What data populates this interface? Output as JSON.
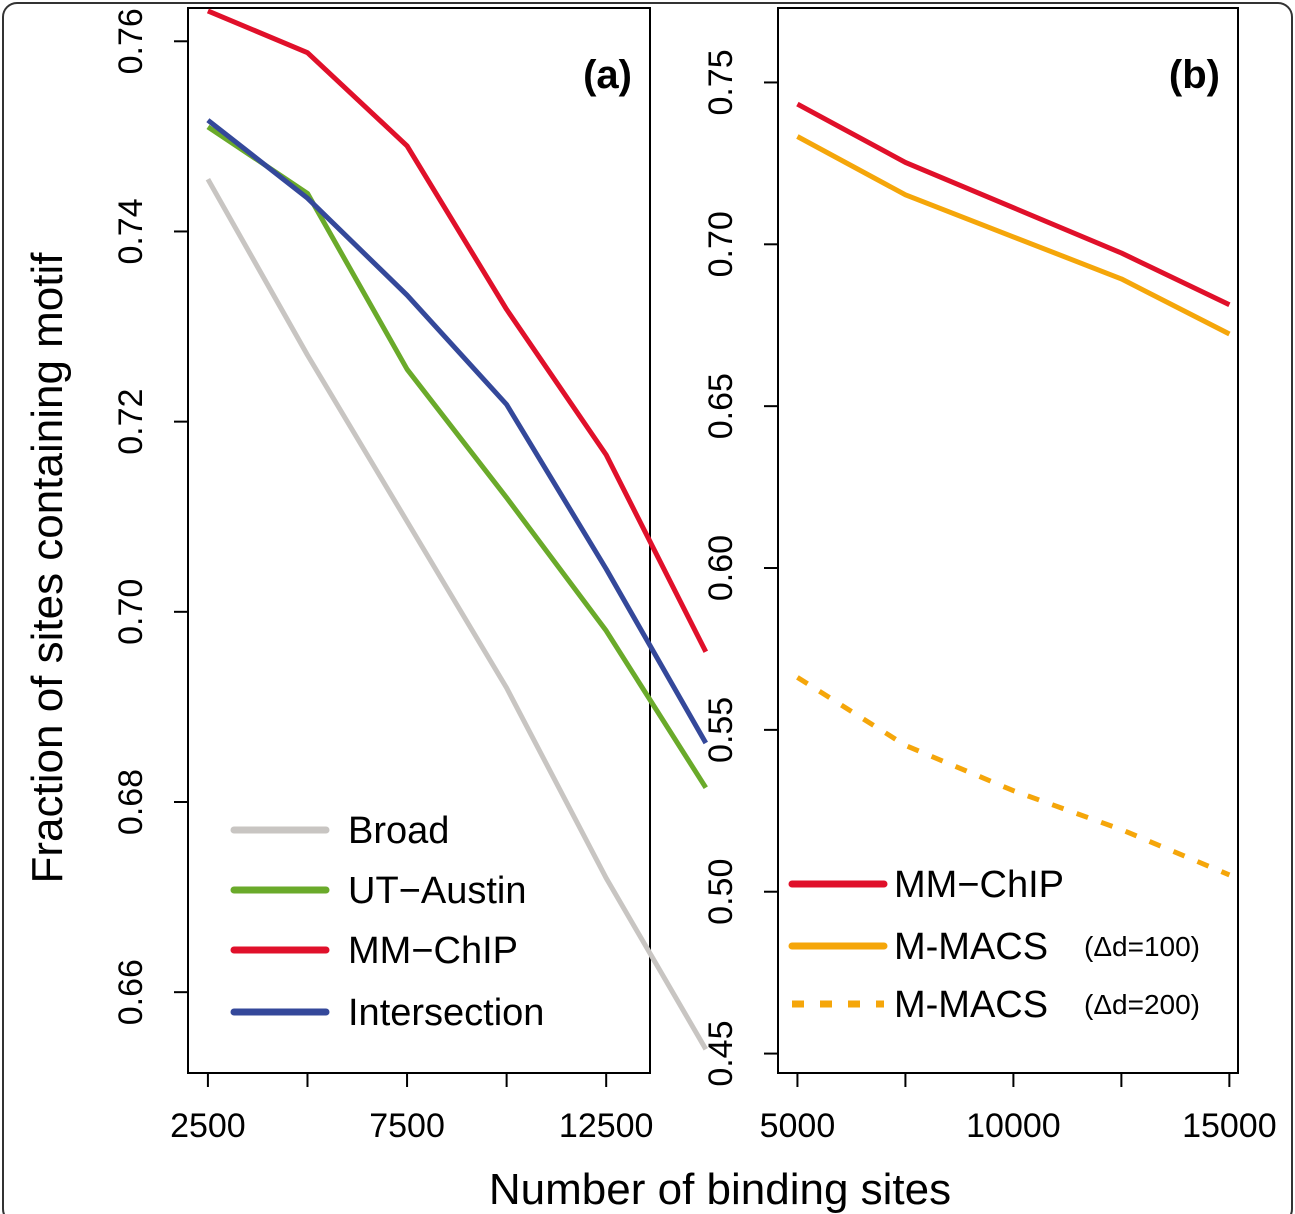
{
  "figure": {
    "ylabel": "Fraction of sites containing motif",
    "xlabel": "Number of binding sites"
  },
  "chart_data": [
    {
      "type": "line",
      "panel": "(a)",
      "xlim": [
        2000,
        13600
      ],
      "ylim": [
        0.6515,
        0.7635
      ],
      "x_ticks": [
        2500,
        5000,
        7500,
        10000,
        12500
      ],
      "x_tick_labels": [
        "2500",
        "",
        "7500",
        "",
        "12500"
      ],
      "y_ticks": [
        0.66,
        0.68,
        0.7,
        0.72,
        0.74,
        0.76
      ],
      "y_tick_labels": [
        "0.66",
        "0.68",
        "0.70",
        "0.72",
        "0.74",
        "0.76"
      ],
      "x": [
        2500,
        5000,
        7500,
        10000,
        12500,
        15000
      ],
      "series": [
        {
          "name": "Broad",
          "color": "#c8c5c2",
          "dash": "solid",
          "values": [
            0.7455,
            0.727,
            0.7095,
            0.692,
            0.672,
            0.654
          ]
        },
        {
          "name": "UT−Austin",
          "color": "#6aaa2a",
          "dash": "solid",
          "values": [
            0.751,
            0.744,
            0.7255,
            0.712,
            0.698,
            0.6815
          ]
        },
        {
          "name": "MM−ChIP",
          "color": "#e0102a",
          "dash": "solid",
          "values": [
            0.7632,
            0.7588,
            0.749,
            0.7318,
            0.7165,
            0.6958
          ]
        },
        {
          "name": "Intersection",
          "color": "#34489a",
          "dash": "solid",
          "values": [
            0.7517,
            0.7435,
            0.7333,
            0.7218,
            0.7045,
            0.6862
          ]
        }
      ],
      "legend": "bottom-left"
    },
    {
      "type": "line",
      "panel": "(b)",
      "xlim": [
        4550,
        15200
      ],
      "ylim": [
        0.444,
        0.773
      ],
      "x_ticks": [
        5000,
        7500,
        10000,
        12500,
        15000
      ],
      "x_tick_labels": [
        "5000",
        "",
        "10000",
        "",
        "15000"
      ],
      "y_ticks": [
        0.45,
        0.5,
        0.55,
        0.6,
        0.65,
        0.7,
        0.75
      ],
      "y_tick_labels": [
        "0.45",
        "0.50",
        "0.55",
        "0.60",
        "0.65",
        "0.70",
        "0.75"
      ],
      "x": [
        5000,
        7500,
        10000,
        12500,
        15000
      ],
      "series": [
        {
          "name": "MM−ChIP",
          "note": "",
          "color": "#e0102a",
          "dash": "solid",
          "values": [
            0.7433,
            0.7253,
            0.7113,
            0.6973,
            0.6813
          ]
        },
        {
          "name": "M-MACS",
          "note": "(Δd=100)",
          "color": "#f5a60a",
          "dash": "solid",
          "values": [
            0.7333,
            0.7153,
            0.7023,
            0.6893,
            0.6723
          ]
        },
        {
          "name": "M-MACS",
          "note": "(Δd=200)",
          "color": "#f5a60a",
          "dash": "dashed",
          "values": [
            0.5662,
            0.5452,
            0.5312,
            0.5192,
            0.5052
          ]
        }
      ],
      "legend": "bottom-left"
    }
  ]
}
